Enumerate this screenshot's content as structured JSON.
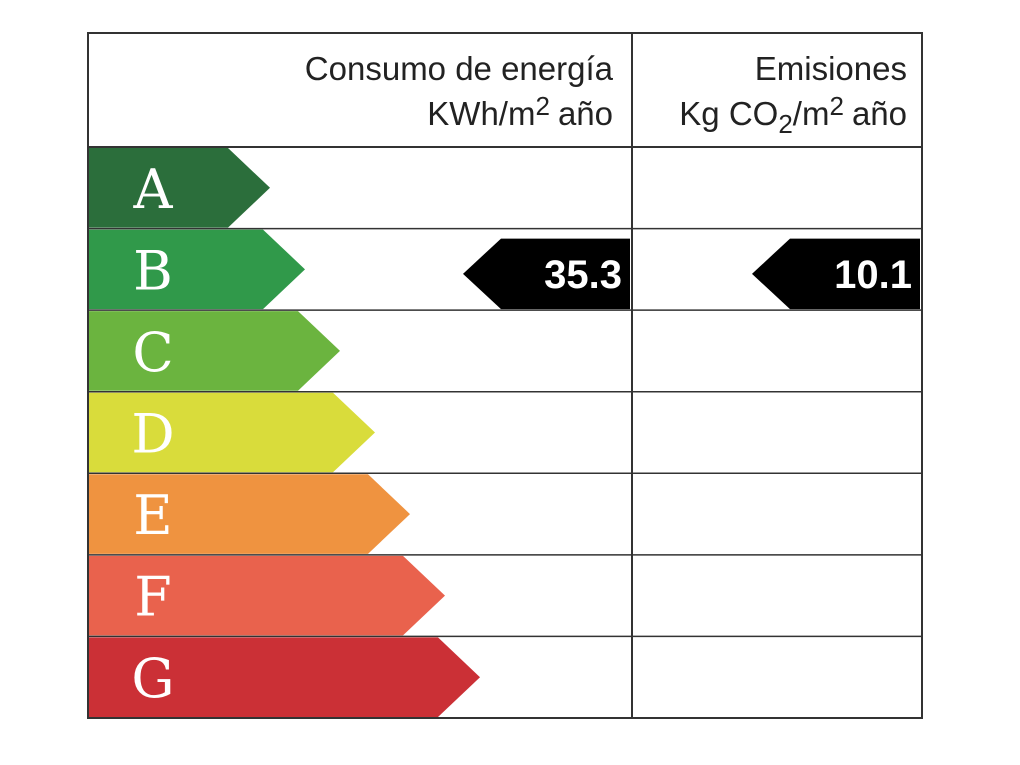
{
  "header": {
    "energy": {
      "title": "Consumo de energía",
      "unit_base": "KWh/m",
      "unit_sup": "2",
      "unit_rest": "año"
    },
    "emissions": {
      "title": "Emisiones",
      "unit_base": "Kg CO",
      "unit_sub": "2",
      "unit_mid": "/m",
      "unit_sup": "2",
      "unit_rest": "año"
    }
  },
  "ratings": [
    {
      "letter": "A",
      "color": "#2b6e3b"
    },
    {
      "letter": "B",
      "color": "#30994a",
      "energy": 35.3,
      "emissions": 10.1
    },
    {
      "letter": "C",
      "color": "#6bb43f"
    },
    {
      "letter": "D",
      "color": "#d9dc3b"
    },
    {
      "letter": "E",
      "color": "#ef9340"
    },
    {
      "letter": "F",
      "color": "#e9624d"
    },
    {
      "letter": "G",
      "color": "#cb3036"
    }
  ]
}
